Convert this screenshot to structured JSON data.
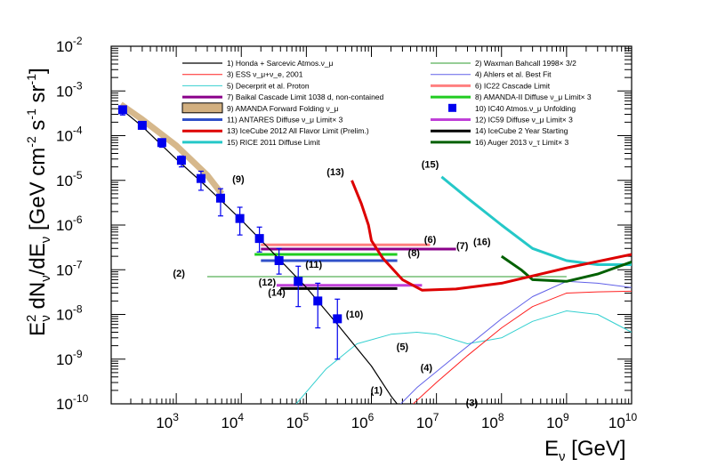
{
  "chart_data": {
    "type": "line",
    "title": "",
    "xlabel": "E_ν [GeV]",
    "ylabel": "E²_ν dN_ν/dE_ν [GeV cm⁻² s⁻¹ sr⁻¹]",
    "xscale": "log",
    "yscale": "log",
    "xlim": [
      100,
      10000000000
    ],
    "ylim": [
      1e-10,
      0.01
    ],
    "x_ticks": [
      {
        "v": 1000,
        "m": "10",
        "e": "3"
      },
      {
        "v": 10000,
        "m": "10",
        "e": "4"
      },
      {
        "v": 100000,
        "m": "10",
        "e": "5"
      },
      {
        "v": 1000000,
        "m": "10",
        "e": "6"
      },
      {
        "v": 10000000,
        "m": "10",
        "e": "7"
      },
      {
        "v": 100000000,
        "m": "10",
        "e": "8"
      },
      {
        "v": 1000000000,
        "m": "10",
        "e": "9"
      },
      {
        "v": 10000000000,
        "m": "10",
        "e": "10"
      }
    ],
    "y_ticks": [
      {
        "v": 1e-10,
        "m": "10",
        "e": "-10"
      },
      {
        "v": 1e-09,
        "m": "10",
        "e": "-9"
      },
      {
        "v": 1e-08,
        "m": "10",
        "e": "-8"
      },
      {
        "v": 1e-07,
        "m": "10",
        "e": "-7"
      },
      {
        "v": 1e-06,
        "m": "10",
        "e": "-6"
      },
      {
        "v": 1e-05,
        "m": "10",
        "e": "-5"
      },
      {
        "v": 0.0001,
        "m": "10",
        "e": "-4"
      },
      {
        "v": 0.001,
        "m": "10",
        "e": "-3"
      },
      {
        "v": 0.01,
        "m": "10",
        "e": "-2"
      }
    ],
    "series": [
      {
        "id": "honda",
        "name": "1) Honda + Sarcevic Atmos.ν_μ",
        "color": "#000000",
        "width": 1.2,
        "kind": "line",
        "points": [
          [
            140,
            0.0004
          ],
          [
            300,
            0.00016
          ],
          [
            1000,
            3e-05
          ],
          [
            3000,
            7e-06
          ],
          [
            10000,
            1.3e-06
          ],
          [
            30000,
            2.5e-07
          ],
          [
            100000,
            4e-08
          ],
          [
            300000,
            6e-09
          ],
          [
            1000000,
            7e-10
          ],
          [
            2000000,
            1.5e-10
          ],
          [
            3000000,
            7e-11
          ]
        ]
      },
      {
        "id": "waxman",
        "name": "2) Waxman Bahcall 1998× 3/2",
        "color": "#2e9e2e",
        "width": 1,
        "kind": "line",
        "points": [
          [
            3000,
            7e-08
          ],
          [
            1000000000,
            7e-08
          ]
        ]
      },
      {
        "id": "ess",
        "name": "3) ESS ν_μ+ν_e, 2001",
        "color": "#ff2020",
        "width": 1,
        "kind": "line",
        "points": [
          [
            3000000,
            6e-11
          ],
          [
            10000000,
            3e-10
          ],
          [
            30000000,
            1.2e-09
          ],
          [
            100000000,
            5e-09
          ],
          [
            300000000,
            1.5e-08
          ],
          [
            1000000000,
            3e-08
          ],
          [
            3000000000,
            3.2e-08
          ],
          [
            10000000000,
            3.3e-08
          ]
        ]
      },
      {
        "id": "ahlers",
        "name": "4) Ahlers et al. Best Fit",
        "color": "#6060e8",
        "width": 1,
        "kind": "line",
        "points": [
          [
            2000000,
            6e-11
          ],
          [
            5000000,
            2.3e-10
          ],
          [
            20000000,
            1.2e-09
          ],
          [
            100000000,
            8e-09
          ],
          [
            300000000,
            2.5e-08
          ],
          [
            1000000000,
            5.5e-08
          ],
          [
            3000000000,
            5e-08
          ],
          [
            10000000000,
            4e-08
          ]
        ]
      },
      {
        "id": "decerprit",
        "name": "5) Decerprit et al. Proton",
        "color": "#35d0d0",
        "width": 1,
        "kind": "line",
        "points": [
          [
            70000,
            1e-10
          ],
          [
            200000,
            6e-10
          ],
          [
            600000,
            2.2e-09
          ],
          [
            2000000,
            3.6e-09
          ],
          [
            5000000,
            4e-09
          ],
          [
            10000000,
            3.6e-09
          ],
          [
            30000000,
            2.2e-09
          ],
          [
            100000000,
            3e-09
          ],
          [
            300000000,
            7e-09
          ],
          [
            1000000000,
            1.2e-08
          ],
          [
            3000000000,
            1e-08
          ],
          [
            10000000000,
            4e-09
          ]
        ]
      },
      {
        "id": "ic22",
        "name": "6) IC22 Cascade Limit",
        "color": "#ff8080",
        "width": 3,
        "kind": "hline",
        "points": [
          [
            20000,
            3.6e-07
          ],
          [
            8000000,
            3.6e-07
          ]
        ]
      },
      {
        "id": "baikal",
        "name": "7) Baikal Cascade Limit 1038 d, non-contained",
        "color": "#8a008a",
        "width": 3,
        "kind": "hline",
        "points": [
          [
            20000,
            2.9e-07
          ],
          [
            20000000,
            2.9e-07
          ]
        ]
      },
      {
        "id": "amanda2",
        "name": "8) AMANDA-II Diffuse ν_μ Limit× 3",
        "color": "#20cc20",
        "width": 3,
        "kind": "hline",
        "points": [
          [
            16000,
            2.2e-07
          ],
          [
            2500000,
            2.2e-07
          ]
        ]
      },
      {
        "id": "amanda_ff",
        "name": "9) AMANDA Forward Folding ν_μ",
        "color": "#d2b080",
        "width": 7,
        "kind": "band",
        "points": [
          [
            140,
            0.0005
          ],
          [
            300,
            0.00023
          ],
          [
            1000,
            6e-05
          ],
          [
            3000,
            1.3e-05
          ],
          [
            5000,
            5e-06
          ]
        ]
      },
      {
        "id": "ic40",
        "name": "10) IC40 Atmos.ν_μ Unfolding",
        "color": "#0000ee",
        "kind": "markers",
        "points": [
          [
            150,
            0.00038,
            0.00029,
            0.00046
          ],
          [
            300,
            0.00017,
            0.00014,
            0.0002
          ],
          [
            600,
            7e-05,
            5.5e-05,
            8.5e-05
          ],
          [
            1200,
            2.8e-05,
            2e-05,
            3.5e-05
          ],
          [
            2400,
            1.1e-05,
            6e-06,
            1.6e-05
          ],
          [
            4800,
            4e-06,
            1.6e-06,
            6.5e-06
          ],
          [
            9500,
            1.4e-06,
            6e-07,
            2.5e-06
          ],
          [
            19000,
            5e-07,
            2.5e-07,
            9e-07
          ],
          [
            38000,
            1.6e-07,
            8e-08,
            3e-07
          ],
          [
            75000,
            5.5e-08,
            1.5e-08,
            1.2e-07
          ],
          [
            150000,
            2e-08,
            5e-09,
            5e-08
          ],
          [
            300000,
            8e-09,
            1e-09,
            2.2e-08
          ]
        ]
      },
      {
        "id": "antares",
        "name": "11) ANTARES Diffuse ν_μ Limit× 3",
        "color": "#3050c8",
        "width": 3,
        "kind": "hline",
        "points": [
          [
            20000,
            1.6e-07
          ],
          [
            2500000,
            1.6e-07
          ]
        ]
      },
      {
        "id": "ic59",
        "name": "12) IC59 Diffuse ν_μ Limit× 3",
        "color": "#c040d8",
        "width": 3,
        "kind": "hline",
        "points": [
          [
            35000,
            4.5e-08
          ],
          [
            6000000,
            4.5e-08
          ]
        ]
      },
      {
        "id": "ic2012",
        "name": "13) IceCube 2012 All Flavor Limit (Prelim.)",
        "color": "#dd0000",
        "width": 3,
        "kind": "line",
        "points": [
          [
            500000,
            1e-05
          ],
          [
            700000,
            3e-06
          ],
          [
            900000,
            1e-06
          ],
          [
            1000000,
            4.5e-07
          ],
          [
            1500000,
            1.8e-07
          ],
          [
            3000000,
            6e-08
          ],
          [
            6000000,
            3.5e-08
          ],
          [
            20000000,
            3.7e-08
          ],
          [
            100000000,
            5e-08
          ],
          [
            1000000000,
            1.1e-07
          ],
          [
            10000000000,
            2.2e-07
          ]
        ]
      },
      {
        "id": "ic2yr",
        "name": "14) IceCube 2 Year Starting",
        "color": "#000000",
        "width": 3,
        "kind": "hline",
        "points": [
          [
            40000,
            3.8e-08
          ],
          [
            2500000,
            3.8e-08
          ]
        ]
      },
      {
        "id": "rice",
        "name": "15) RICE 2011 Diffuse Limit",
        "color": "#25c8c8",
        "width": 3,
        "kind": "line",
        "points": [
          [
            12000000,
            1.2e-05
          ],
          [
            30000000,
            4e-06
          ],
          [
            100000000,
            1e-06
          ],
          [
            300000000,
            3e-07
          ],
          [
            1000000000,
            1.6e-07
          ],
          [
            3000000000,
            1.3e-07
          ],
          [
            10000000000,
            1.3e-07
          ]
        ]
      },
      {
        "id": "auger",
        "name": "16) Auger 2013 ν_τ Limit× 3",
        "color": "#006000",
        "width": 3,
        "kind": "line",
        "points": [
          [
            100000000,
            2e-07
          ],
          [
            200000000,
            1e-07
          ],
          [
            300000000,
            6e-08
          ],
          [
            1000000000,
            5.5e-08
          ],
          [
            3000000000,
            8e-08
          ],
          [
            10000000000,
            1.5e-07
          ]
        ]
      }
    ],
    "annotations": [
      {
        "text": "(1)",
        "x": 1200000,
        "y": 1.7e-10
      },
      {
        "text": "(2)",
        "x": 1100,
        "y": 7e-08
      },
      {
        "text": "(3)",
        "x": 35000000,
        "y": 9e-11
      },
      {
        "text": "(4)",
        "x": 7000000,
        "y": 5.5e-10
      },
      {
        "text": "(5)",
        "x": 3000000,
        "y": 1.6e-09
      },
      {
        "text": "(6)",
        "x": 8000000,
        "y": 4e-07
      },
      {
        "text": "(7)",
        "x": 25000000,
        "y": 2.9e-07
      },
      {
        "text": "(8)",
        "x": 4500000,
        "y": 2e-07
      },
      {
        "text": "(9)",
        "x": 9000,
        "y": 9e-06
      },
      {
        "text": "(10)",
        "x": 550000,
        "y": 8.5e-09
      },
      {
        "text": "(11)",
        "x": 130000,
        "y": 1.1e-07
      },
      {
        "text": "(12)",
        "x": 25000,
        "y": 4.4e-08
      },
      {
        "text": "(13)",
        "x": 280000,
        "y": 1.3e-05
      },
      {
        "text": "(14)",
        "x": 35000,
        "y": 2.6e-08
      },
      {
        "text": "(15)",
        "x": 8000000,
        "y": 1.9e-05
      },
      {
        "text": "(16)",
        "x": 50000000,
        "y": 3.6e-07
      }
    ],
    "legend": {
      "placement": "top",
      "columns": [
        [
          "honda",
          "ess",
          "decerprit",
          "baikal",
          "amanda_ff",
          "antares",
          "ic2012",
          "rice"
        ],
        [
          "waxman",
          "ahlers",
          "ic22",
          "amanda2",
          "ic40",
          "ic59",
          "ic2yr",
          "auger"
        ]
      ]
    }
  }
}
